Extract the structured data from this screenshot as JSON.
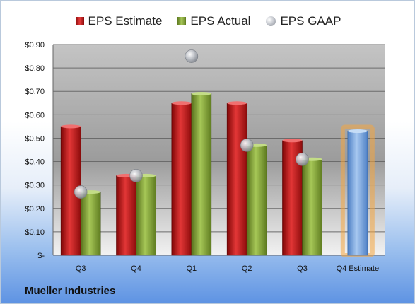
{
  "chart_data": {
    "type": "bar",
    "categories": [
      "Q3",
      "Q4",
      "Q1",
      "Q2",
      "Q3",
      "Q4 Estimate"
    ],
    "series": [
      {
        "name": "EPS Estimate",
        "color": "#c62020",
        "values": [
          0.55,
          0.34,
          0.65,
          0.65,
          0.49,
          null
        ]
      },
      {
        "name": "EPS Actual",
        "color": "#7fa238",
        "values": [
          0.27,
          0.34,
          0.69,
          0.47,
          0.41,
          null
        ]
      },
      {
        "name": "EPS GAAP",
        "color": "#a9adb5",
        "style": "bubble",
        "values": [
          0.27,
          0.34,
          0.85,
          0.47,
          0.41,
          null
        ]
      }
    ],
    "forward_estimate": {
      "category": "Q4 Estimate",
      "value": 0.53,
      "color": "#6f9fd8",
      "highlight": "#f4a640"
    },
    "yticks": [
      "$-",
      "$0.10",
      "$0.20",
      "$0.30",
      "$0.40",
      "$0.50",
      "$0.60",
      "$0.70",
      "$0.80",
      "$0.90"
    ],
    "ylim": [
      0,
      0.9
    ],
    "grid": true,
    "legend_position": "top",
    "company": "Mueller Industries"
  }
}
